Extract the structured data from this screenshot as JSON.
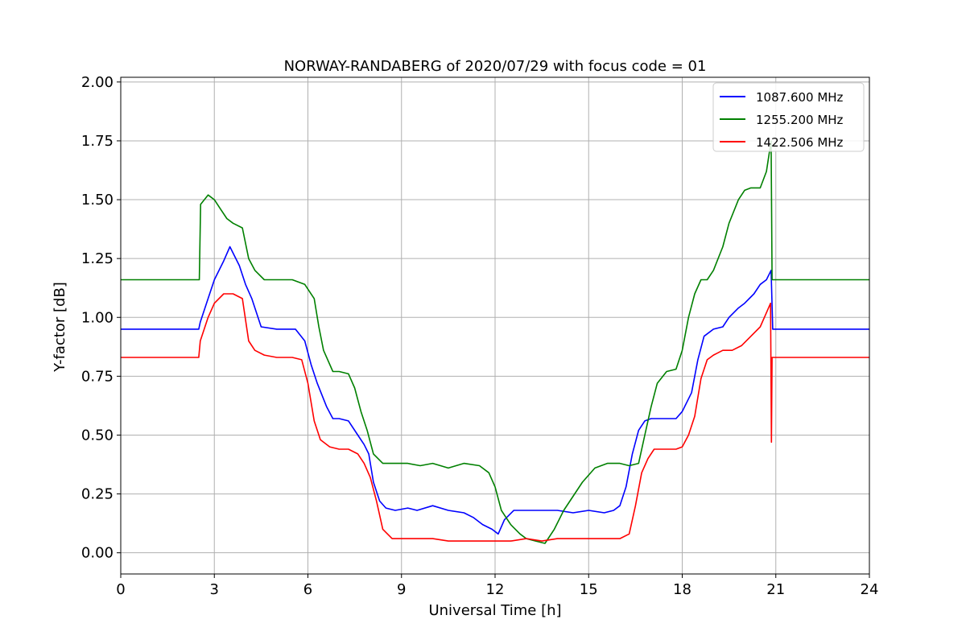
{
  "chart_data": {
    "type": "line",
    "title": "NORWAY-RANDABERG of 2020/07/29 with focus code = 01",
    "xlabel": "Universal Time [h]",
    "ylabel": "Y-factor [dB]",
    "xlim": [
      0,
      24
    ],
    "ylim": [
      -0.09,
      2.02
    ],
    "xticks": [
      0,
      3,
      6,
      9,
      12,
      15,
      18,
      21,
      24
    ],
    "xtick_labels": [
      "0",
      "3",
      "6",
      "9",
      "12",
      "15",
      "18",
      "21",
      "24"
    ],
    "yticks": [
      0.0,
      0.25,
      0.5,
      0.75,
      1.0,
      1.25,
      1.5,
      1.75,
      2.0
    ],
    "ytick_labels": [
      "0.00",
      "0.25",
      "0.50",
      "0.75",
      "1.00",
      "1.25",
      "1.50",
      "1.75",
      "2.00"
    ],
    "grid": true,
    "legend_position": "top-right",
    "series": [
      {
        "name": "1087.600 MHz",
        "color": "#0000ff",
        "x": [
          0,
          2.5,
          2.55,
          2.8,
          3.0,
          3.3,
          3.5,
          3.8,
          4.0,
          4.2,
          4.5,
          5.0,
          5.6,
          5.9,
          6.1,
          6.3,
          6.6,
          6.8,
          7.0,
          7.3,
          7.6,
          7.8,
          7.95,
          8.1,
          8.3,
          8.5,
          8.8,
          9.2,
          9.5,
          10.0,
          10.5,
          11.0,
          11.3,
          11.6,
          11.9,
          12.1,
          12.3,
          12.6,
          13.0,
          13.5,
          14.0,
          14.5,
          15.0,
          15.5,
          15.8,
          16.0,
          16.2,
          16.4,
          16.6,
          16.8,
          17.0,
          17.3,
          17.6,
          17.8,
          18.0,
          18.3,
          18.5,
          18.7,
          19.0,
          19.3,
          19.5,
          19.8,
          20.0,
          20.3,
          20.5,
          20.7,
          20.85,
          20.9,
          21.0,
          22.0,
          23.0,
          24.0
        ],
        "y": [
          0.95,
          0.95,
          0.98,
          1.08,
          1.16,
          1.24,
          1.3,
          1.22,
          1.14,
          1.08,
          0.96,
          0.95,
          0.95,
          0.9,
          0.8,
          0.72,
          0.62,
          0.57,
          0.57,
          0.56,
          0.5,
          0.46,
          0.42,
          0.3,
          0.22,
          0.19,
          0.18,
          0.19,
          0.18,
          0.2,
          0.18,
          0.17,
          0.15,
          0.12,
          0.1,
          0.08,
          0.14,
          0.18,
          0.18,
          0.18,
          0.18,
          0.17,
          0.18,
          0.17,
          0.18,
          0.2,
          0.28,
          0.42,
          0.52,
          0.56,
          0.57,
          0.57,
          0.57,
          0.57,
          0.6,
          0.68,
          0.82,
          0.92,
          0.95,
          0.96,
          1.0,
          1.04,
          1.06,
          1.1,
          1.14,
          1.16,
          1.2,
          0.95,
          0.95,
          0.95,
          0.95,
          0.95
        ]
      },
      {
        "name": "1255.200 MHz",
        "color": "#008000",
        "x": [
          0,
          2.52,
          2.56,
          2.8,
          3.0,
          3.2,
          3.4,
          3.6,
          3.9,
          4.1,
          4.3,
          4.6,
          5.0,
          5.5,
          5.9,
          6.2,
          6.35,
          6.5,
          6.8,
          7.0,
          7.3,
          7.5,
          7.7,
          7.9,
          8.1,
          8.4,
          8.8,
          9.2,
          9.6,
          10.0,
          10.5,
          11.0,
          11.5,
          11.8,
          12.0,
          12.2,
          12.5,
          12.8,
          13.0,
          13.3,
          13.6,
          13.9,
          14.2,
          14.5,
          14.8,
          15.2,
          15.6,
          16.0,
          16.3,
          16.6,
          16.8,
          17.0,
          17.2,
          17.5,
          17.8,
          18.0,
          18.2,
          18.4,
          18.6,
          18.8,
          19.0,
          19.3,
          19.5,
          19.8,
          20.0,
          20.2,
          20.5,
          20.7,
          20.85,
          20.88,
          21.0,
          22.0,
          23.0,
          24.0
        ],
        "y": [
          1.16,
          1.16,
          1.48,
          1.52,
          1.5,
          1.46,
          1.42,
          1.4,
          1.38,
          1.25,
          1.2,
          1.16,
          1.16,
          1.16,
          1.14,
          1.08,
          0.96,
          0.86,
          0.77,
          0.77,
          0.76,
          0.7,
          0.6,
          0.52,
          0.42,
          0.38,
          0.38,
          0.38,
          0.37,
          0.38,
          0.36,
          0.38,
          0.37,
          0.34,
          0.28,
          0.18,
          0.12,
          0.08,
          0.06,
          0.05,
          0.04,
          0.1,
          0.18,
          0.24,
          0.3,
          0.36,
          0.38,
          0.38,
          0.37,
          0.38,
          0.5,
          0.62,
          0.72,
          0.77,
          0.78,
          0.86,
          1.0,
          1.1,
          1.16,
          1.16,
          1.2,
          1.3,
          1.4,
          1.5,
          1.54,
          1.55,
          1.55,
          1.62,
          1.75,
          1.16,
          1.16,
          1.16,
          1.16,
          1.16
        ]
      },
      {
        "name": "1422.506 MHz",
        "color": "#ff0000",
        "x": [
          0,
          2.5,
          2.55,
          2.8,
          3.0,
          3.3,
          3.6,
          3.9,
          4.1,
          4.3,
          4.6,
          5.0,
          5.5,
          5.8,
          6.0,
          6.2,
          6.4,
          6.7,
          7.0,
          7.3,
          7.6,
          7.8,
          8.0,
          8.2,
          8.4,
          8.7,
          9.0,
          9.5,
          10.0,
          10.5,
          11.0,
          11.5,
          12.0,
          12.5,
          13.0,
          13.5,
          14.0,
          14.5,
          15.0,
          15.5,
          16.0,
          16.3,
          16.5,
          16.7,
          16.9,
          17.1,
          17.5,
          17.8,
          18.0,
          18.2,
          18.4,
          18.6,
          18.8,
          19.0,
          19.3,
          19.6,
          19.9,
          20.2,
          20.5,
          20.7,
          20.83,
          20.86,
          20.88,
          20.92,
          21.0,
          22.0,
          23.0,
          24.0
        ],
        "y": [
          0.83,
          0.83,
          0.9,
          1.0,
          1.06,
          1.1,
          1.1,
          1.08,
          0.9,
          0.86,
          0.84,
          0.83,
          0.83,
          0.82,
          0.72,
          0.56,
          0.48,
          0.45,
          0.44,
          0.44,
          0.42,
          0.38,
          0.32,
          0.22,
          0.1,
          0.06,
          0.06,
          0.06,
          0.06,
          0.05,
          0.05,
          0.05,
          0.05,
          0.05,
          0.06,
          0.05,
          0.06,
          0.06,
          0.06,
          0.06,
          0.06,
          0.08,
          0.2,
          0.34,
          0.4,
          0.44,
          0.44,
          0.44,
          0.45,
          0.5,
          0.58,
          0.74,
          0.82,
          0.84,
          0.86,
          0.86,
          0.88,
          0.92,
          0.96,
          1.02,
          1.06,
          0.47,
          0.83,
          0.83,
          0.83,
          0.83,
          0.83,
          0.83
        ]
      }
    ]
  }
}
